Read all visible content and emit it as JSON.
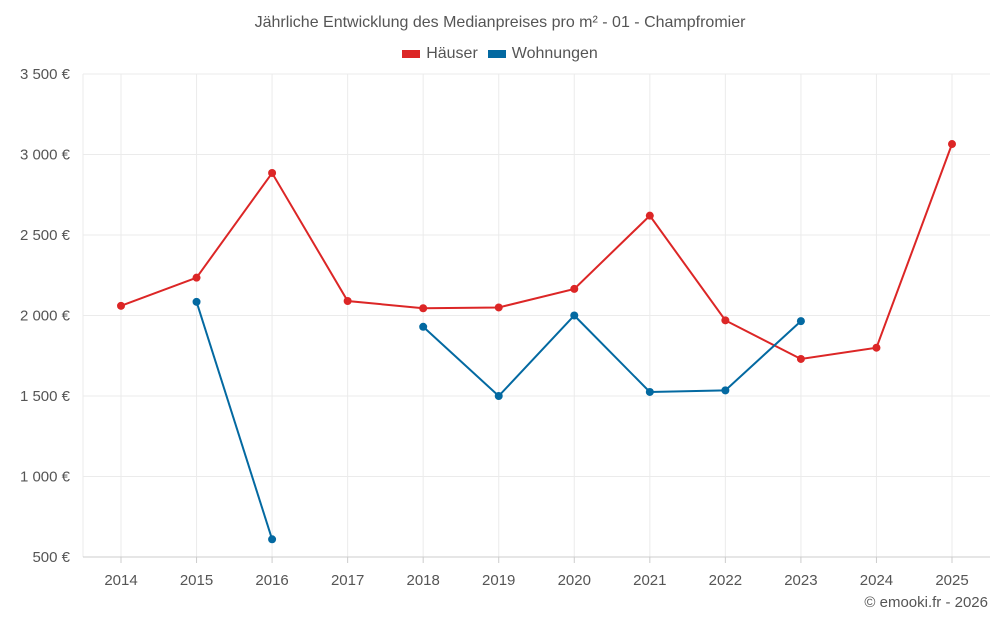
{
  "chart_data": {
    "type": "line",
    "title": "Jährliche Entwicklung des Medianpreises pro m² - 01 - Champfromier",
    "xlabel": "",
    "ylabel": "",
    "categories": [
      "2014",
      "2015",
      "2016",
      "2017",
      "2018",
      "2019",
      "2020",
      "2021",
      "2022",
      "2023",
      "2024",
      "2025"
    ],
    "ylim": [
      500,
      3500
    ],
    "yticks": [
      500,
      1000,
      1500,
      2000,
      2500,
      3000,
      3500
    ],
    "ytick_labels": [
      "500 €",
      "1 000 €",
      "1 500 €",
      "2 000 €",
      "2 500 €",
      "3 000 €",
      "3 500 €"
    ],
    "grid": true,
    "legend_position": "top-center",
    "series": [
      {
        "name": "Häuser",
        "color": "#dc2626",
        "values": [
          2060,
          2235,
          2885,
          2090,
          2045,
          2050,
          2165,
          2620,
          1970,
          1730,
          1800,
          3065
        ]
      },
      {
        "name": "Wohnungen",
        "color": "#0369a1",
        "values": [
          null,
          2085,
          610,
          null,
          1930,
          1500,
          2000,
          1525,
          1535,
          1965,
          null,
          null
        ]
      }
    ]
  },
  "credit": "© emooki.fr - 2026"
}
